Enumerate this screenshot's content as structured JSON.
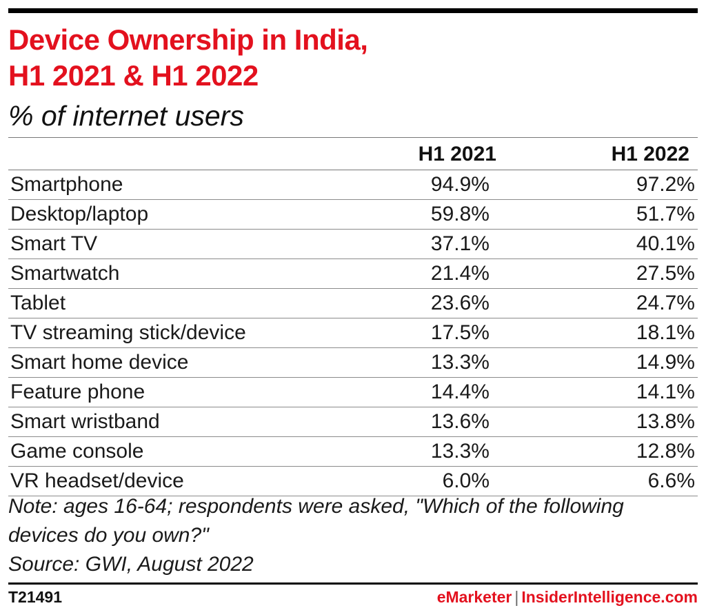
{
  "title_line1": "Device Ownership in India,",
  "title_line2": "H1 2021 & H1 2022",
  "subtitle": "% of internet users",
  "columns": [
    "H1 2021",
    "H1 2022"
  ],
  "note": "Note: ages 16-64; respondents were asked, \"Which of the following devices do you own?\"",
  "source": "Source: GWI, August 2022",
  "footer": {
    "chart_id": "T21491",
    "brand_primary": "eMarketer",
    "separator": "|",
    "brand_secondary": "InsiderIntelligence.com"
  },
  "colors": {
    "accent": "#e3111e",
    "text": "#1a1a1a",
    "rule": "#000000"
  },
  "chart_data": {
    "type": "table",
    "title": "Device Ownership in India, H1 2021 & H1 2022",
    "subtitle": "% of internet users",
    "columns": [
      "H1 2021",
      "H1 2022"
    ],
    "rows": [
      {
        "label": "Smartphone",
        "values": [
          "94.9%",
          "97.2%"
        ]
      },
      {
        "label": "Desktop/laptop",
        "values": [
          "59.8%",
          "51.7%"
        ]
      },
      {
        "label": "Smart TV",
        "values": [
          "37.1%",
          "40.1%"
        ]
      },
      {
        "label": "Smartwatch",
        "values": [
          "21.4%",
          "27.5%"
        ]
      },
      {
        "label": "Tablet",
        "values": [
          "23.6%",
          "24.7%"
        ]
      },
      {
        "label": "TV streaming stick/device",
        "values": [
          "17.5%",
          "18.1%"
        ]
      },
      {
        "label": "Smart home device",
        "values": [
          "13.3%",
          "14.9%"
        ]
      },
      {
        "label": "Feature phone",
        "values": [
          "14.4%",
          "14.1%"
        ]
      },
      {
        "label": "Smart wristband",
        "values": [
          "13.6%",
          "13.8%"
        ]
      },
      {
        "label": "Game console",
        "values": [
          "13.3%",
          "12.8%"
        ]
      },
      {
        "label": "VR headset/device",
        "values": [
          "6.0%",
          "6.6%"
        ]
      }
    ]
  }
}
